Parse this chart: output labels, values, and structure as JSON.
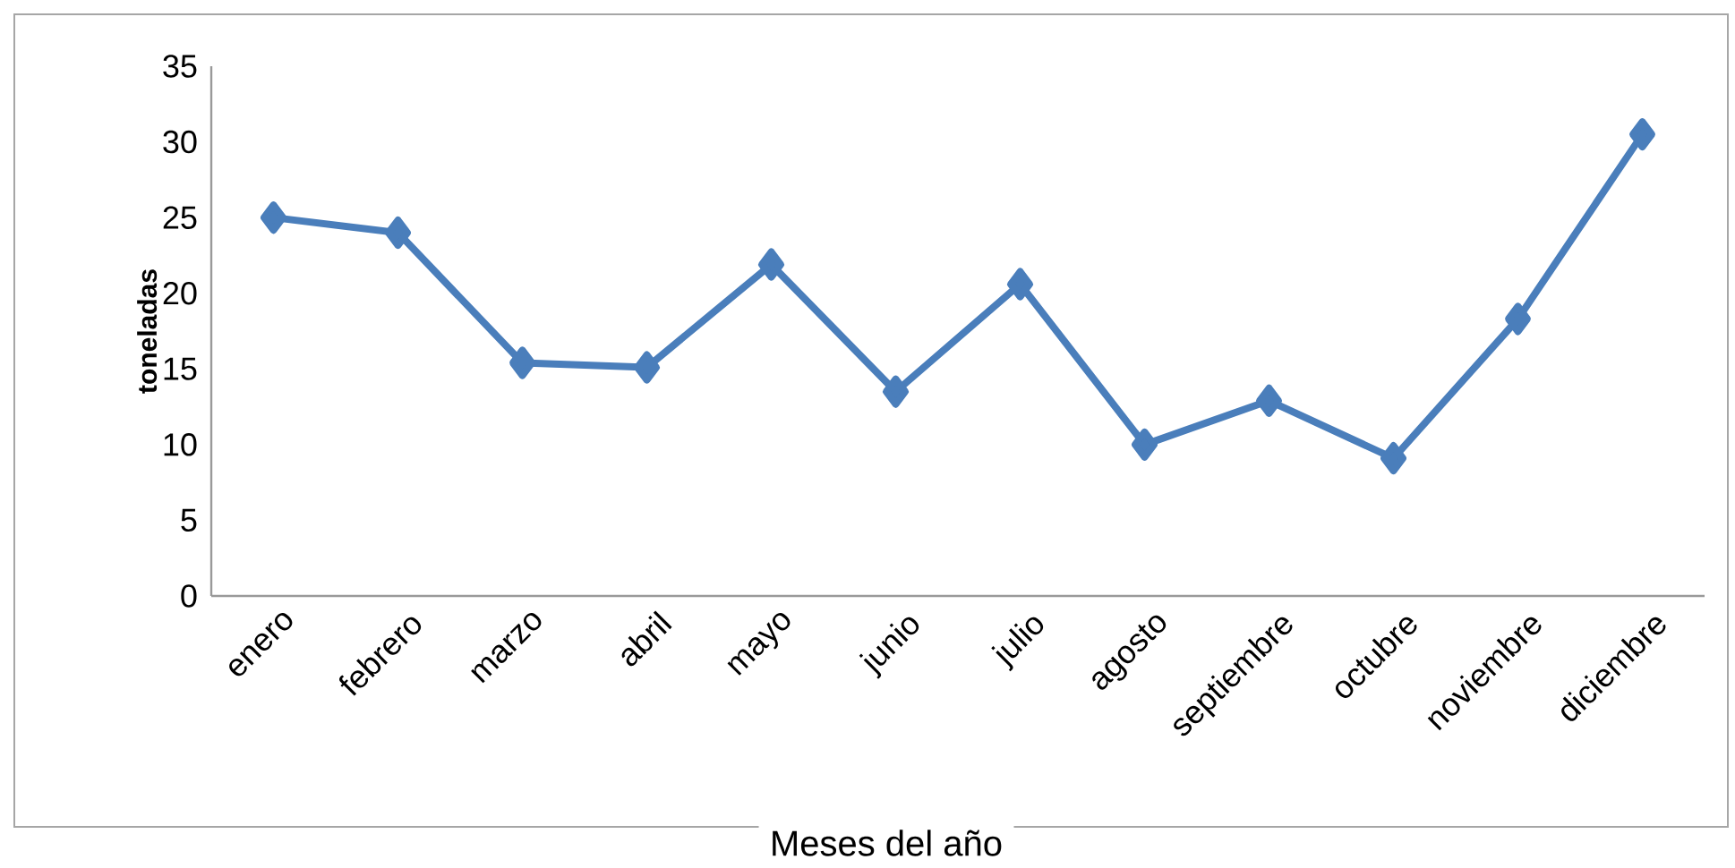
{
  "chart_data": {
    "type": "line",
    "xlabel": "Meses del año",
    "ylabel": "toneladas",
    "categories": [
      "enero",
      "febrero",
      "marzo",
      "abril",
      "mayo",
      "junio",
      "julio",
      "agosto",
      "septiembre",
      "octubre",
      "noviembre",
      "diciembre"
    ],
    "values": [
      25,
      24,
      15.4,
      15.1,
      21.9,
      13.5,
      20.6,
      10,
      12.9,
      9.1,
      18.3,
      30.5
    ],
    "color": "#4a7ebb",
    "marker": "diamond",
    "ylim": [
      0,
      35
    ],
    "yticks": [
      0,
      5,
      10,
      15,
      20,
      25,
      30,
      35
    ]
  }
}
